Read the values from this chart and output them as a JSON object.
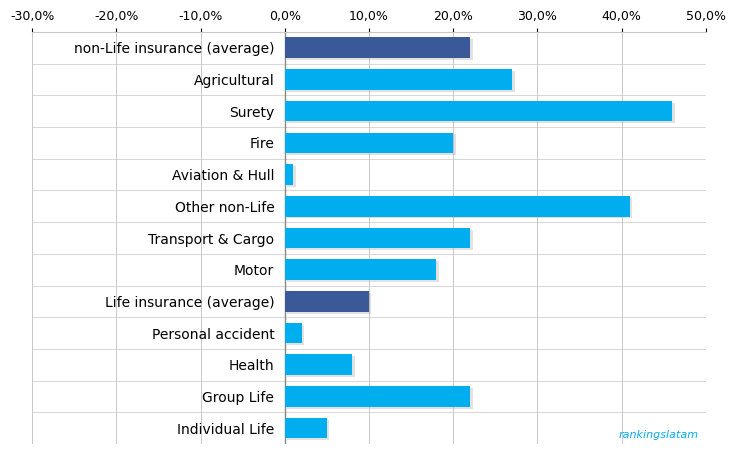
{
  "categories": [
    "non-Life insurance (average)",
    "Agricultural",
    "Surety",
    "Fire",
    "Aviation & Hull",
    "Other non-Life",
    "Transport & Cargo",
    "Motor",
    "Life insurance (average)",
    "Personal accident",
    "Health",
    "Group Life",
    "Individual Life"
  ],
  "values": [
    22.0,
    27.0,
    46.0,
    20.0,
    1.0,
    41.0,
    22.0,
    18.0,
    10.0,
    2.0,
    8.0,
    22.0,
    5.0
  ],
  "colors": [
    "#3B5998",
    "#00AEEF",
    "#00AEEF",
    "#00AEEF",
    "#00AEEF",
    "#00AEEF",
    "#00AEEF",
    "#00AEEF",
    "#3B5998",
    "#00AEEF",
    "#00AEEF",
    "#00AEEF",
    "#00AEEF"
  ],
  "xlim": [
    -30,
    50
  ],
  "xticks": [
    -30,
    -20,
    -10,
    0,
    10,
    20,
    30,
    40,
    50
  ],
  "xtick_labels": [
    "-30,0%",
    "-20,0%",
    "-10,0%",
    "0,0%",
    "10,0%",
    "20,0%",
    "30,0%",
    "40,0%",
    "50,0%"
  ],
  "watermark": "rankingslatam",
  "background_color": "#ffffff",
  "grid_color": "#c8c8c8",
  "bar_height": 0.65,
  "label_fontsize": 9.5,
  "tick_fontsize": 9.0,
  "label_fontweight": "bold"
}
